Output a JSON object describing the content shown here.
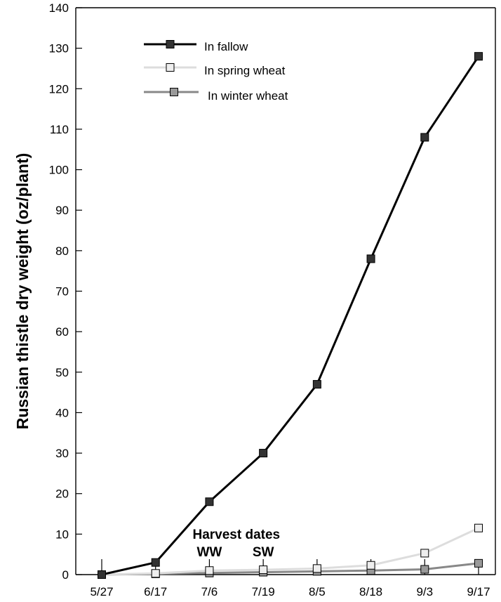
{
  "chart_data": {
    "type": "line",
    "title": "",
    "xlabel": "",
    "ylabel": "Russian thistle dry weight (oz/plant)",
    "x": [
      "5/27",
      "6/17",
      "7/6",
      "7/19",
      "8/5",
      "8/18",
      "9/3",
      "9/17"
    ],
    "yticks": [
      0,
      10,
      20,
      30,
      40,
      50,
      60,
      70,
      80,
      90,
      100,
      110,
      120,
      130,
      140
    ],
    "ylim": [
      0,
      140
    ],
    "grid": false,
    "legend_position": "top-left",
    "series": [
      {
        "name": "In fallow",
        "values": [
          0,
          3,
          18,
          30,
          47,
          78,
          108,
          128
        ],
        "line_color": "#000000",
        "marker_color": "#333333"
      },
      {
        "name": "In spring wheat",
        "values": [
          0,
          0.3,
          1,
          1.2,
          1.5,
          2.3,
          5.3,
          11.5
        ],
        "line_color": "#dddddd",
        "marker_color": "#eeeeee"
      },
      {
        "name": "In winter wheat",
        "values": [
          0,
          0.2,
          0.4,
          0.6,
          0.8,
          1,
          1.3,
          2.8
        ],
        "line_color": "#888888",
        "marker_color": "#999999"
      }
    ],
    "annotations": {
      "harvest_title": "Harvest dates",
      "ww_label": "WW",
      "ww_at": "7/6",
      "sw_label": "SW",
      "sw_at": "7/19"
    }
  }
}
